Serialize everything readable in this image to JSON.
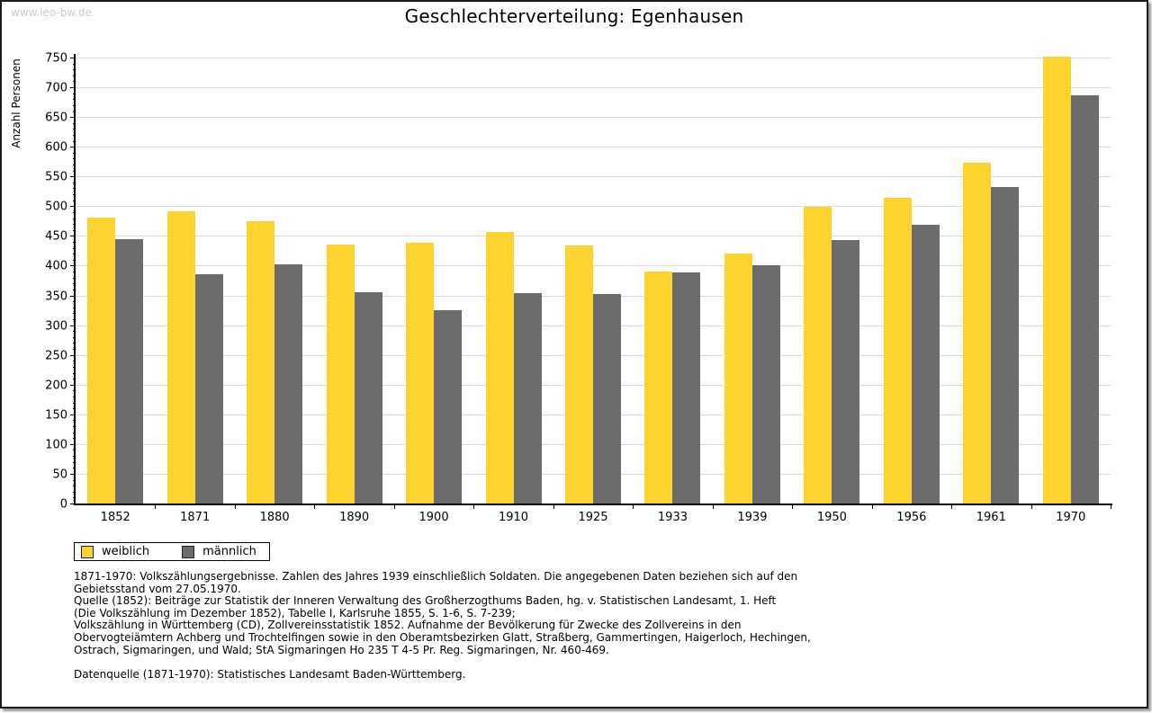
{
  "watermark": "www.leo-bw.de",
  "title": "Geschlechterverteilung: Egenhausen",
  "chart_data": {
    "type": "bar",
    "title": "Geschlechterverteilung: Egenhausen",
    "xlabel": "",
    "ylabel": "Anzahl Personen",
    "ylim": [
      0,
      750
    ],
    "ytick_major_step": 50,
    "ytick_minor_step": 10,
    "grid": "horizontal-light",
    "legend_position": "bottom-left",
    "categories": [
      "1852",
      "1871",
      "1880",
      "1890",
      "1900",
      "1910",
      "1925",
      "1933",
      "1939",
      "1950",
      "1956",
      "1961",
      "1970"
    ],
    "series": [
      {
        "name": "weiblich",
        "color": "#FCD32F",
        "values": [
          481,
          491,
          475,
          435,
          438,
          457,
          434,
          390,
          420,
          499,
          514,
          573,
          751
        ]
      },
      {
        "name": "männlich",
        "color": "#6C6C6C",
        "values": [
          444,
          385,
          402,
          355,
          325,
          354,
          352,
          389,
          400,
          443,
          468,
          532,
          686
        ]
      }
    ]
  },
  "footer": {
    "lines": [
      "1871-1970: Volkszählungsergebnisse. Zahlen des Jahres 1939 einschließlich Soldaten. Die angegebenen Daten beziehen sich auf den",
      "Gebietsstand vom 27.05.1970.",
      "Quelle (1852): Beiträge zur Statistik der Inneren Verwaltung des Großherzogthums Baden, hg. v. Statistischen Landesamt, 1. Heft",
      "(Die Volkszählung im Dezember 1852), Tabelle I, Karlsruhe 1855, S. 1-6, S. 7-239;",
      "Volkszählung in Württemberg (CD), Zollvereinsstatistik 1852. Aufnahme der Bevölkerung für Zwecke des Zollvereins in den",
      "Obervogteiämtern Achberg und Trochtelfingen sowie in den Oberamtsbezirken Glatt, Straßberg, Gammertingen, Haigerloch, Hechingen,",
      "Ostrach, Sigmaringen, und Wald; StA Sigmaringen Ho 235 T 4-5 Pr. Reg. Sigmaringen, Nr. 460-469."
    ],
    "datenquelle": "Datenquelle (1871-1970): Statistisches Landesamt Baden-Württemberg."
  }
}
